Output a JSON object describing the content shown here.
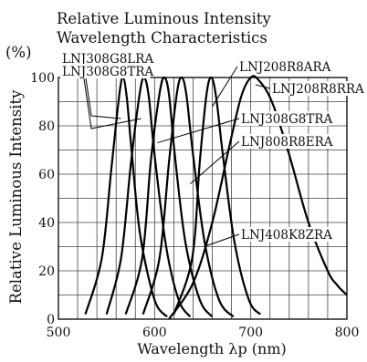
{
  "chart_data": {
    "type": "line",
    "title": "Relative Luminous Intensity",
    "subtitle": "Wavelength Characteristics",
    "xlabel": "Wavelength λp (nm)",
    "ylabel": "Relative Luminous Intensity",
    "yunit": "(%)",
    "xlim": [
      500,
      800
    ],
    "ylim": [
      0,
      100
    ],
    "xticks": [
      500,
      600,
      700,
      800
    ],
    "yticks": [
      0,
      20,
      40,
      60,
      80,
      100
    ],
    "grid": true,
    "series": [
      {
        "name": "LNJ308G8LRA",
        "x": [
          528,
          545,
          555,
          563,
          567,
          571,
          576,
          585,
          600,
          613
        ],
        "y": [
          2,
          25,
          62,
          92,
          100,
          92,
          70,
          35,
          8,
          1
        ]
      },
      {
        "name": "LNJ308G8TRA",
        "x": [
          550,
          565,
          575,
          584,
          589,
          594,
          600,
          612,
          625,
          637
        ],
        "y": [
          2,
          25,
          63,
          92,
          100,
          92,
          68,
          30,
          8,
          1
        ]
      },
      {
        "name": "LNJ808R8ERA",
        "x": [
          570,
          587,
          596,
          605,
          610,
          615,
          621,
          632,
          647,
          660
        ],
        "y": [
          2,
          25,
          65,
          93,
          100,
          93,
          68,
          32,
          8,
          1
        ]
      },
      {
        "name": "LNJ408K8ZRA",
        "x": [
          588,
          605,
          615,
          623,
          628,
          633,
          640,
          652,
          667,
          682
        ],
        "y": [
          2,
          25,
          65,
          93,
          100,
          93,
          68,
          32,
          8,
          1
        ]
      },
      {
        "name": "LNJ208R8ARA",
        "x": [
          620,
          639,
          647,
          654,
          659,
          664,
          671,
          683,
          698,
          710
        ],
        "y": [
          2,
          25,
          65,
          93,
          100,
          92,
          68,
          32,
          8,
          2
        ]
      },
      {
        "name": "LNJ208R8RRA",
        "x": [
          615,
          640,
          660,
          678,
          690,
          700,
          708,
          722,
          740,
          760,
          780,
          790,
          800
        ],
        "y": [
          0,
          15,
          40,
          72,
          92,
          100,
          99,
          90,
          68,
          40,
          20,
          14,
          10
        ]
      }
    ],
    "annotations": [
      {
        "text": "LNJ308G8LRA",
        "target": "LNJ308G8LRA",
        "at": [
          565,
          83
        ]
      },
      {
        "text": "LNJ308G8TRA",
        "target": "LNJ308G8TRA",
        "at": [
          586,
          83
        ]
      },
      {
        "text": "LNJ208R8ARA",
        "target": "LNJ208R8ARA",
        "at": [
          660,
          88
        ]
      },
      {
        "text": "LNJ208R8RRA",
        "target": "LNJ208R8RRA",
        "at": [
          705,
          97
        ]
      },
      {
        "text": "LNJ308G8TRA",
        "target": "LNJ308G8TRA",
        "at": [
          603,
          73
        ]
      },
      {
        "text": "LNJ808R8ERA",
        "target": "LNJ808R8ERA",
        "at": [
          637,
          56
        ]
      },
      {
        "text": "LNJ408K8ZRA",
        "target": "LNJ408K8ZRA",
        "at": [
          651,
          30
        ]
      }
    ]
  }
}
